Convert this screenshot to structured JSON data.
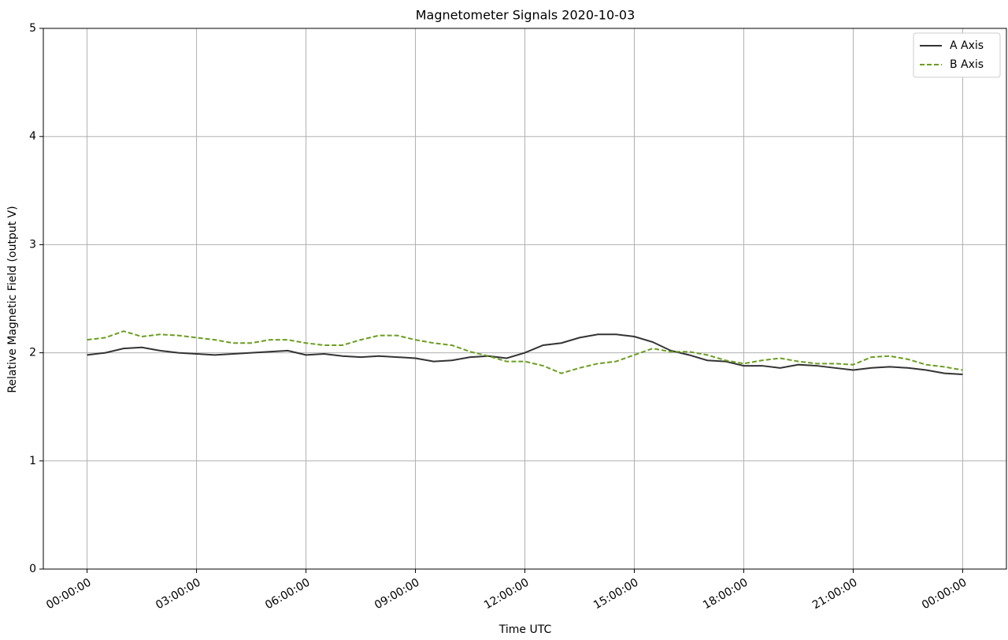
{
  "chart_data": {
    "type": "line",
    "title": "Magnetometer Signals 2020-10-03",
    "x_label": "Time UTC",
    "y_label": "Relative Magnetic Field (output V)",
    "x": [
      0,
      0.5,
      1,
      1.5,
      2,
      2.5,
      3,
      3.5,
      4,
      4.5,
      5,
      5.5,
      6,
      6.5,
      7,
      7.5,
      8,
      8.5,
      9,
      9.5,
      10,
      10.5,
      11,
      11.5,
      12,
      12.5,
      13,
      13.5,
      14,
      14.5,
      15,
      15.5,
      16,
      16.5,
      17,
      17.5,
      18,
      18.5,
      19,
      19.5,
      20,
      20.5,
      21,
      21.5,
      22,
      22.5,
      23,
      23.5,
      24
    ],
    "series": [
      {
        "name": "A Axis",
        "color": "#333333",
        "style": "solid",
        "values": [
          1.98,
          2.0,
          2.04,
          2.05,
          2.02,
          2.0,
          1.99,
          1.98,
          1.99,
          2.0,
          2.01,
          2.02,
          1.98,
          1.99,
          1.97,
          1.96,
          1.97,
          1.96,
          1.95,
          1.92,
          1.93,
          1.96,
          1.97,
          1.95,
          2.0,
          2.07,
          2.09,
          2.14,
          2.17,
          2.17,
          2.15,
          2.1,
          2.02,
          1.98,
          1.93,
          1.92,
          1.88,
          1.88,
          1.86,
          1.89,
          1.88,
          1.86,
          1.84,
          1.86,
          1.87,
          1.86,
          1.84,
          1.81,
          1.8
        ]
      },
      {
        "name": "B Axis",
        "color": "#6b9e1f",
        "style": "dashed",
        "values": [
          2.12,
          2.14,
          2.2,
          2.15,
          2.17,
          2.16,
          2.14,
          2.12,
          2.09,
          2.09,
          2.12,
          2.12,
          2.09,
          2.07,
          2.07,
          2.12,
          2.16,
          2.16,
          2.12,
          2.09,
          2.07,
          2.01,
          1.97,
          1.92,
          1.92,
          1.88,
          1.81,
          1.86,
          1.9,
          1.92,
          1.98,
          2.04,
          2.01,
          2.01,
          1.98,
          1.93,
          1.9,
          1.93,
          1.95,
          1.92,
          1.9,
          1.9,
          1.89,
          1.96,
          1.97,
          1.94,
          1.89,
          1.87,
          1.84
        ]
      }
    ],
    "xlim": [
      -1.2,
      25.2
    ],
    "xticks": [
      {
        "value": 0,
        "label": "00:00:00"
      },
      {
        "value": 3,
        "label": "03:00:00"
      },
      {
        "value": 6,
        "label": "06:00:00"
      },
      {
        "value": 9,
        "label": "09:00:00"
      },
      {
        "value": 12,
        "label": "12:00:00"
      },
      {
        "value": 15,
        "label": "15:00:00"
      },
      {
        "value": 18,
        "label": "18:00:00"
      },
      {
        "value": 21,
        "label": "21:00:00"
      },
      {
        "value": 24,
        "label": "00:00:00"
      }
    ],
    "ylim": [
      0,
      5
    ],
    "yticks": [
      0,
      1,
      2,
      3,
      4,
      5
    ],
    "grid": true,
    "legend": "upper right"
  }
}
